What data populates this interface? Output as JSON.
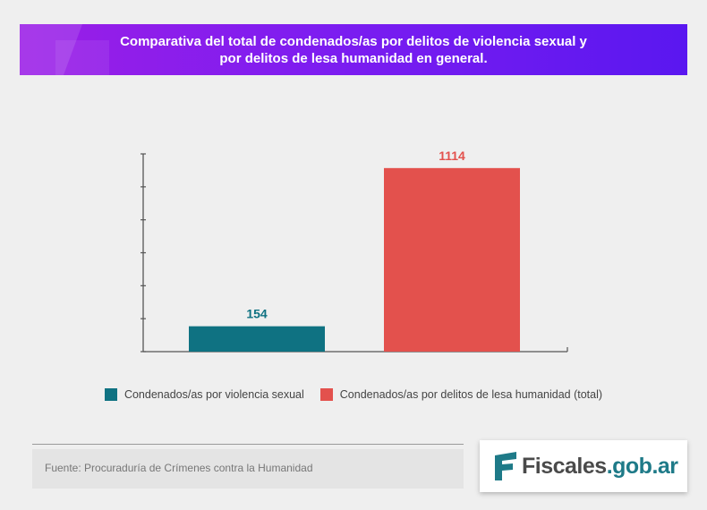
{
  "header": {
    "title_line1": "Comparativa del total de condenados/as por delitos de violencia sexual y",
    "title_line2": "por delitos de lesa humanidad en general."
  },
  "chart_data": {
    "type": "bar",
    "categories": [
      "Condenados/as por violencia sexual",
      "Condenados/as por delitos de lesa humanidad (total)"
    ],
    "values": [
      154,
      1114
    ],
    "colors": [
      "#0f7282",
      "#e3514d"
    ],
    "title": "Comparativa del total de condenados/as por delitos de violencia sexual y por delitos de lesa humanidad en general.",
    "xlabel": "",
    "ylabel": "",
    "ylim": [
      0,
      1200
    ],
    "grid": false,
    "y_tick_labels_shown": false,
    "legend_position": "bottom"
  },
  "legend": {
    "items": [
      {
        "label": "Condenados/as por violencia sexual",
        "color": "#0f7282"
      },
      {
        "label": "Condenados/as por delitos de lesa humanidad (total)",
        "color": "#e3514d"
      }
    ]
  },
  "footer": {
    "source": "Fuente: Procuraduría de Crímenes contra la Humanidad",
    "logo_part1": "Fiscales",
    "logo_part2": ".gob.ar"
  }
}
